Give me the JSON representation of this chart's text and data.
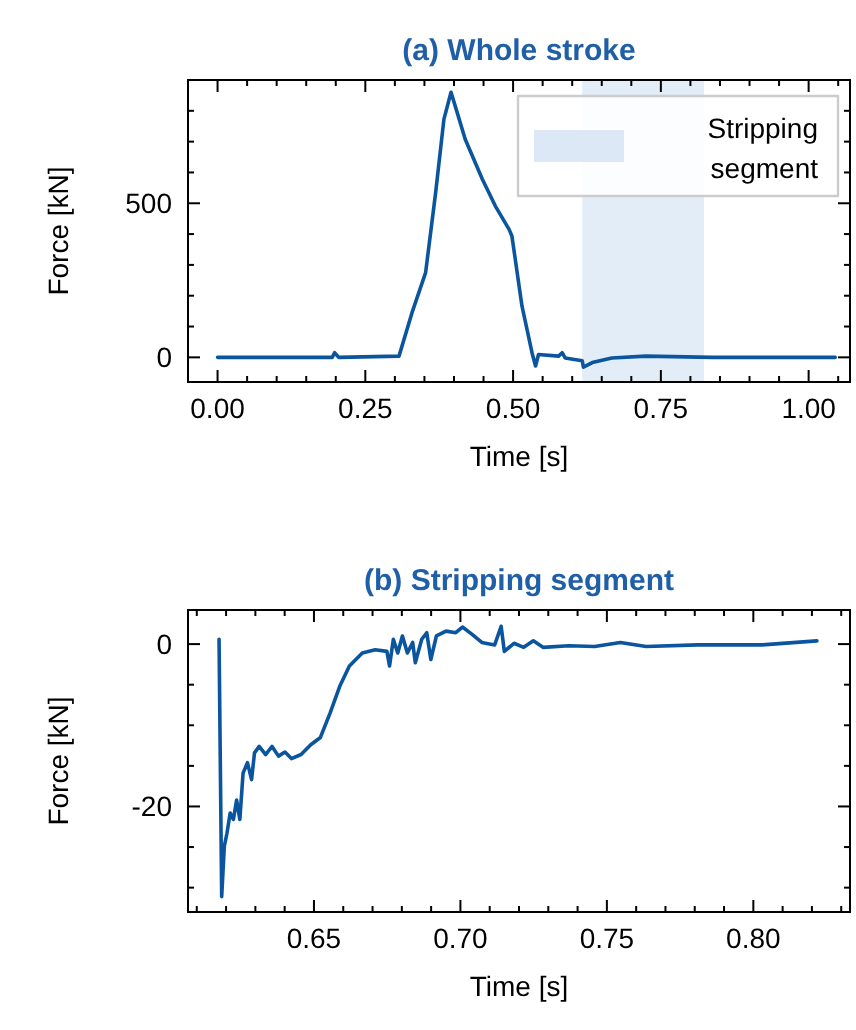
{
  "chart_data": [
    {
      "type": "line",
      "title": "(a) Whole stroke",
      "xlabel": "Time [s]",
      "ylabel": "Force [kN]",
      "xlim": [
        -0.05,
        1.07
      ],
      "ylim": [
        -80,
        900
      ],
      "xticks": [
        {
          "value": 0,
          "label": "0.00"
        },
        {
          "value": 0.05,
          "label": null
        },
        {
          "value": 0.1,
          "label": null
        },
        {
          "value": 0.15,
          "label": null
        },
        {
          "value": 0.2,
          "label": null
        },
        {
          "value": 0.25,
          "label": "0.25"
        },
        {
          "value": 0.3,
          "label": null
        },
        {
          "value": 0.35,
          "label": null
        },
        {
          "value": 0.4,
          "label": null
        },
        {
          "value": 0.45,
          "label": null
        },
        {
          "value": 0.5,
          "label": "0.50"
        },
        {
          "value": 0.55,
          "label": null
        },
        {
          "value": 0.6,
          "label": null
        },
        {
          "value": 0.65,
          "label": null
        },
        {
          "value": 0.7,
          "label": null
        },
        {
          "value": 0.75,
          "label": "0.75"
        },
        {
          "value": 0.8,
          "label": null
        },
        {
          "value": 0.85,
          "label": null
        },
        {
          "value": 0.9,
          "label": null
        },
        {
          "value": 0.95,
          "label": null
        },
        {
          "value": 1,
          "label": "1.00"
        },
        {
          "value": 1.05,
          "label": null
        }
      ],
      "yticks": [
        0,
        {
          "value": 100,
          "label": null
        },
        {
          "value": 200,
          "label": null
        },
        {
          "value": 300,
          "label": null
        },
        {
          "value": 400,
          "label": null
        },
        500,
        {
          "value": 600,
          "label": null
        },
        {
          "value": 700,
          "label": null
        },
        {
          "value": 800,
          "label": null
        }
      ],
      "grid": false,
      "legend": "top right",
      "bands": [
        {
          "axis": "x",
          "from": 0.617,
          "to": 0.823,
          "label": "Stripping segment",
          "color": "#dce8f5"
        }
      ],
      "series": [
        {
          "color": "#0b559f",
          "x": [
            0,
            0.194,
            0.198,
            0.205,
            0.307,
            0.329,
            0.352,
            0.369,
            0.383,
            0.395,
            0.402,
            0.419,
            0.448,
            0.47,
            0.493,
            0.498,
            0.515,
            0.532,
            0.538,
            0.543,
            0.577,
            0.583,
            0.588,
            0.617,
            0.619,
            0.634,
            0.667,
            0.724,
            0.837,
            1.045
          ],
          "values": [
            0,
            0,
            15,
            0,
            4,
            145,
            275,
            535,
            773,
            860,
            816,
            708,
            578,
            491,
            416,
            394,
            167,
            15,
            -28,
            9,
            4,
            15,
            -2,
            -11,
            -32,
            -17,
            -2,
            4,
            0,
            0
          ]
        }
      ]
    },
    {
      "type": "line",
      "title": "(b) Stripping segment",
      "xlabel": "Time [s]",
      "ylabel": "Force [kN]",
      "xlim": [
        0.607,
        0.833
      ],
      "ylim": [
        -33,
        4.2
      ],
      "xticks": [
        {
          "value": 0.61,
          "label": null
        },
        {
          "value": 0.62,
          "label": null
        },
        {
          "value": 0.63,
          "label": null
        },
        {
          "value": 0.64,
          "label": null
        },
        0.65,
        {
          "value": 0.66,
          "label": null
        },
        {
          "value": 0.67,
          "label": null
        },
        {
          "value": 0.68,
          "label": null
        },
        {
          "value": 0.69,
          "label": null
        },
        {
          "value": 0.7,
          "label": "0.70"
        },
        {
          "value": 0.71,
          "label": null
        },
        {
          "value": 0.72,
          "label": null
        },
        {
          "value": 0.73,
          "label": null
        },
        {
          "value": 0.74,
          "label": null
        },
        0.75,
        {
          "value": 0.76,
          "label": null
        },
        {
          "value": 0.77,
          "label": null
        },
        {
          "value": 0.78,
          "label": null
        },
        {
          "value": 0.79,
          "label": null
        },
        {
          "value": 0.8,
          "label": "0.80"
        },
        {
          "value": 0.81,
          "label": null
        },
        {
          "value": 0.82,
          "label": null
        },
        {
          "value": 0.83,
          "label": null
        }
      ],
      "yticks": [
        {
          "value": -30,
          "label": null
        },
        {
          "value": -25,
          "label": null
        },
        -20,
        {
          "value": -15,
          "label": null
        },
        {
          "value": -10,
          "label": null
        },
        {
          "value": -5,
          "label": null
        },
        0
      ],
      "grid": false,
      "series": [
        {
          "color": "#0b559f",
          "x": [
            0.6176,
            0.6185,
            0.6194,
            0.6203,
            0.6214,
            0.6225,
            0.6236,
            0.6247,
            0.6258,
            0.6273,
            0.6287,
            0.6297,
            0.6313,
            0.6335,
            0.6357,
            0.6379,
            0.6401,
            0.6423,
            0.6456,
            0.6489,
            0.6522,
            0.6555,
            0.6588,
            0.6621,
            0.6665,
            0.6709,
            0.6749,
            0.6758,
            0.6771,
            0.6786,
            0.6802,
            0.6819,
            0.6837,
            0.6846,
            0.6868,
            0.6885,
            0.6899,
            0.6918,
            0.6951,
            0.6984,
            0.7007,
            0.704,
            0.7073,
            0.7117,
            0.7139,
            0.715,
            0.7183,
            0.7216,
            0.7249,
            0.7282,
            0.737,
            0.7458,
            0.7546,
            0.7634,
            0.781,
            0.803,
            0.8217
          ],
          "values": [
            0.6,
            -31.1,
            -24.9,
            -23.3,
            -20.8,
            -21.6,
            -19.2,
            -21.6,
            -15.9,
            -14.6,
            -16.7,
            -13.4,
            -12.6,
            -13.6,
            -12.6,
            -13.8,
            -13.3,
            -14.1,
            -13.6,
            -12.4,
            -11.5,
            -8.5,
            -5.2,
            -2.7,
            -1.1,
            -0.7,
            -0.9,
            -2.7,
            0.6,
            -1.1,
            1.0,
            -1.1,
            0.2,
            -2.3,
            0.6,
            1.4,
            -1.9,
            1.0,
            1.6,
            1.4,
            2.1,
            1.2,
            0.2,
            -0.1,
            2.2,
            -0.9,
            0.1,
            -0.4,
            0.4,
            -0.4,
            -0.2,
            -0.3,
            0.2,
            -0.3,
            -0.1,
            -0.1,
            0.4
          ]
        }
      ]
    }
  ]
}
